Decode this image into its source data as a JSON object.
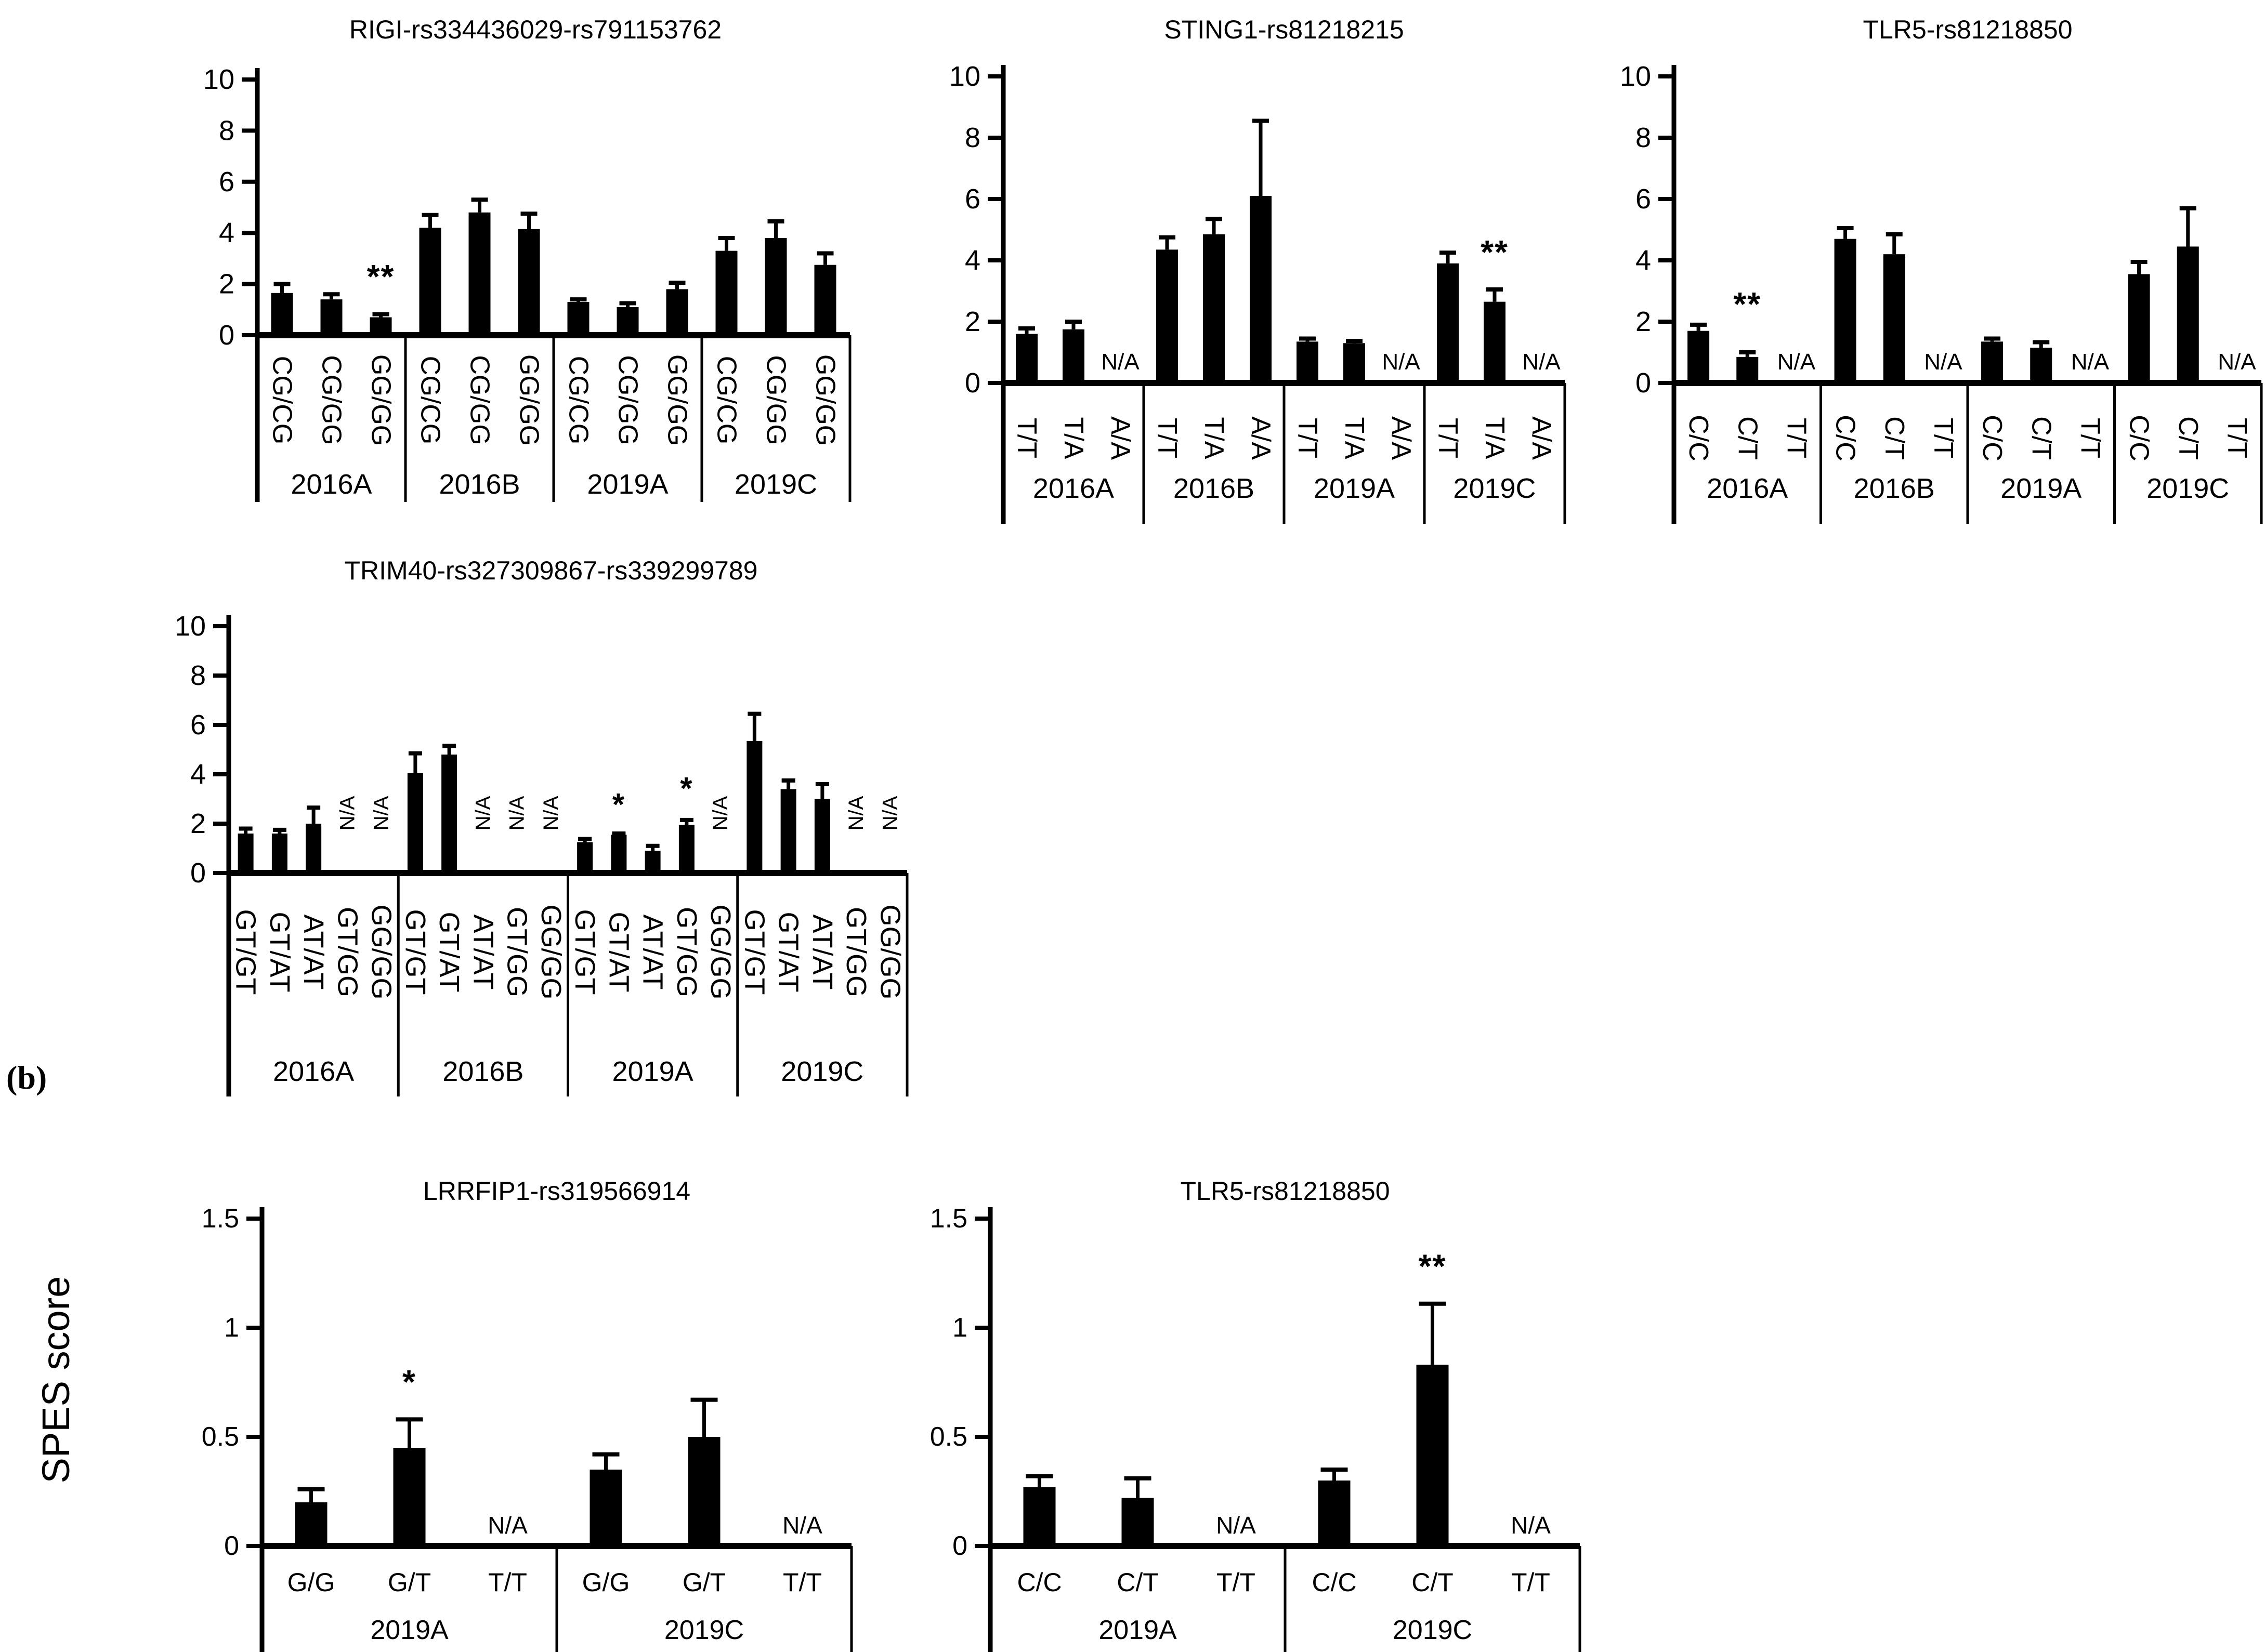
{
  "figure": {
    "panel_label": "(b)",
    "y_axis_label": "SPES score",
    "na_text": "N/A"
  },
  "chart_data": [
    {
      "id": "chart-rigi",
      "type": "bar",
      "title": "RIGI-rs334436029-rs791153762",
      "ylim": [
        0,
        10
      ],
      "yticks": [
        0,
        2,
        4,
        6,
        8,
        10
      ],
      "grid": false,
      "legend": null,
      "genotypes": [
        "CG/CG",
        "CG/GG",
        "GG/GG"
      ],
      "categories": [
        "2016A",
        "2016B",
        "2019A",
        "2019C"
      ],
      "groups": [
        {
          "label": "2016A",
          "bars": [
            {
              "x": "CG/CG",
              "value": 1.65,
              "error": 0.35
            },
            {
              "x": "CG/GG",
              "value": 1.4,
              "error": 0.2
            },
            {
              "x": "GG/GG",
              "value": 0.7,
              "error": 0.12,
              "sig": "**",
              "sig_y": 1.85
            }
          ]
        },
        {
          "label": "2016B",
          "bars": [
            {
              "x": "CG/CG",
              "value": 4.2,
              "error": 0.5
            },
            {
              "x": "CG/GG",
              "value": 4.8,
              "error": 0.5
            },
            {
              "x": "GG/GG",
              "value": 4.15,
              "error": 0.6
            }
          ]
        },
        {
          "label": "2019A",
          "bars": [
            {
              "x": "CG/CG",
              "value": 1.3,
              "error": 0.1
            },
            {
              "x": "CG/GG",
              "value": 1.1,
              "error": 0.15
            },
            {
              "x": "GG/GG",
              "value": 1.8,
              "error": 0.25
            }
          ]
        },
        {
          "label": "2019C",
          "bars": [
            {
              "x": "CG/CG",
              "value": 3.3,
              "error": 0.5
            },
            {
              "x": "CG/GG",
              "value": 3.8,
              "error": 0.65
            },
            {
              "x": "GG/GG",
              "value": 2.75,
              "error": 0.45
            }
          ]
        }
      ]
    },
    {
      "id": "chart-sting1",
      "type": "bar",
      "title": "STING1-rs81218215",
      "ylim": [
        0,
        10
      ],
      "yticks": [
        0,
        2,
        4,
        6,
        8,
        10
      ],
      "grid": false,
      "legend": null,
      "genotypes": [
        "T/T",
        "T/A",
        "A/A"
      ],
      "categories": [
        "2016A",
        "2016B",
        "2019A",
        "2019C"
      ],
      "groups": [
        {
          "label": "2016A",
          "bars": [
            {
              "x": "T/T",
              "value": 1.6,
              "error": 0.18
            },
            {
              "x": "T/A",
              "value": 1.75,
              "error": 0.25
            },
            {
              "x": "A/A",
              "value": null
            }
          ]
        },
        {
          "label": "2016B",
          "bars": [
            {
              "x": "T/T",
              "value": 4.35,
              "error": 0.4
            },
            {
              "x": "T/A",
              "value": 4.85,
              "error": 0.5
            },
            {
              "x": "A/A",
              "value": 6.1,
              "error": 2.45
            }
          ]
        },
        {
          "label": "2019A",
          "bars": [
            {
              "x": "T/T",
              "value": 1.35,
              "error": 0.1
            },
            {
              "x": "T/A",
              "value": 1.3,
              "error": 0.07
            },
            {
              "x": "A/A",
              "value": null
            }
          ]
        },
        {
          "label": "2019C",
          "bars": [
            {
              "x": "T/T",
              "value": 3.9,
              "error": 0.35
            },
            {
              "x": "T/A",
              "value": 2.65,
              "error": 0.4,
              "sig": "**",
              "sig_y": 3.9
            },
            {
              "x": "A/A",
              "value": null
            }
          ]
        }
      ]
    },
    {
      "id": "chart-tlr5a",
      "type": "bar",
      "title": "TLR5-rs81218850",
      "ylim": [
        0,
        10
      ],
      "yticks": [
        0,
        2,
        4,
        6,
        8,
        10
      ],
      "grid": false,
      "legend": null,
      "genotypes": [
        "C/C",
        "C/T",
        "T/T"
      ],
      "categories": [
        "2016A",
        "2016B",
        "2019A",
        "2019C"
      ],
      "groups": [
        {
          "label": "2016A",
          "bars": [
            {
              "x": "C/C",
              "value": 1.7,
              "error": 0.2
            },
            {
              "x": "C/T",
              "value": 0.85,
              "error": 0.15,
              "sig": "**",
              "sig_y": 2.2
            },
            {
              "x": "T/T",
              "value": null
            }
          ]
        },
        {
          "label": "2016B",
          "bars": [
            {
              "x": "C/C",
              "value": 4.7,
              "error": 0.35
            },
            {
              "x": "C/T",
              "value": 4.2,
              "error": 0.65
            },
            {
              "x": "T/T",
              "value": null
            }
          ]
        },
        {
          "label": "2019A",
          "bars": [
            {
              "x": "C/C",
              "value": 1.35,
              "error": 0.1
            },
            {
              "x": "C/T",
              "value": 1.15,
              "error": 0.18
            },
            {
              "x": "T/T",
              "value": null
            }
          ]
        },
        {
          "label": "2019C",
          "bars": [
            {
              "x": "C/C",
              "value": 3.55,
              "error": 0.4
            },
            {
              "x": "C/T",
              "value": 4.45,
              "error": 1.25
            },
            {
              "x": "T/T",
              "value": null
            }
          ]
        }
      ]
    },
    {
      "id": "chart-trim40",
      "type": "bar",
      "title": "TRIM40-rs327309867-rs339299789",
      "ylim": [
        0,
        10
      ],
      "yticks": [
        0,
        2,
        4,
        6,
        8,
        10
      ],
      "grid": false,
      "legend": null,
      "genotypes": [
        "GT/GT",
        "GT/AT",
        "AT/AT",
        "GT/GG",
        "GG/GG"
      ],
      "categories": [
        "2016A",
        "2016B",
        "2019A",
        "2019C"
      ],
      "groups": [
        {
          "label": "2016A",
          "bars": [
            {
              "x": "GT/GT",
              "value": 1.6,
              "error": 0.2
            },
            {
              "x": "GT/AT",
              "value": 1.6,
              "error": 0.15
            },
            {
              "x": "AT/AT",
              "value": 2.0,
              "error": 0.65
            },
            {
              "x": "GT/GG",
              "value": null
            },
            {
              "x": "GG/GG",
              "value": null
            }
          ]
        },
        {
          "label": "2016B",
          "bars": [
            {
              "x": "GT/GT",
              "value": 4.05,
              "error": 0.8
            },
            {
              "x": "GT/AT",
              "value": 4.8,
              "error": 0.35
            },
            {
              "x": "AT/AT",
              "value": null
            },
            {
              "x": "GT/GG",
              "value": null
            },
            {
              "x": "GG/GG",
              "value": null
            }
          ]
        },
        {
          "label": "2019A",
          "bars": [
            {
              "x": "GT/GT",
              "value": 1.25,
              "error": 0.13
            },
            {
              "x": "GT/AT",
              "value": 1.55,
              "error": 0.05,
              "sig": "*",
              "sig_y": 2.35
            },
            {
              "x": "AT/AT",
              "value": 0.9,
              "error": 0.2
            },
            {
              "x": "GT/GG",
              "value": 1.95,
              "error": 0.2,
              "sig": "*",
              "sig_y": 3.0
            },
            {
              "x": "GG/GG",
              "value": null
            }
          ]
        },
        {
          "label": "2019C",
          "bars": [
            {
              "x": "GT/GT",
              "value": 5.35,
              "error": 1.1
            },
            {
              "x": "GT/AT",
              "value": 3.4,
              "error": 0.35
            },
            {
              "x": "AT/AT",
              "value": 3.0,
              "error": 0.6
            },
            {
              "x": "GT/GG",
              "value": null
            },
            {
              "x": "GG/GG",
              "value": null
            }
          ]
        }
      ]
    },
    {
      "id": "chart-lrrfip1",
      "type": "bar",
      "title": "LRRFIP1-rs319566914",
      "ylim": [
        0,
        1.5
      ],
      "yticks": [
        0,
        0.5,
        1,
        1.5
      ],
      "grid": false,
      "legend": null,
      "genotypes": [
        "G/G",
        "G/T",
        "T/T"
      ],
      "categories": [
        "2019A",
        "2019C"
      ],
      "groups": [
        {
          "label": "2019A",
          "bars": [
            {
              "x": "G/G",
              "value": 0.2,
              "error": 0.06
            },
            {
              "x": "G/T",
              "value": 0.45,
              "error": 0.13,
              "sig": "*",
              "sig_y": 0.7
            },
            {
              "x": "T/T",
              "value": null
            }
          ]
        },
        {
          "label": "2019C",
          "bars": [
            {
              "x": "G/G",
              "value": 0.35,
              "error": 0.07
            },
            {
              "x": "G/T",
              "value": 0.5,
              "error": 0.17
            },
            {
              "x": "T/T",
              "value": null
            }
          ]
        }
      ]
    },
    {
      "id": "chart-tlr5b",
      "type": "bar",
      "title": "TLR5-rs81218850",
      "ylim": [
        0,
        1.5
      ],
      "yticks": [
        0,
        0.5,
        1,
        1.5
      ],
      "grid": false,
      "legend": null,
      "genotypes": [
        "C/C",
        "C/T",
        "T/T"
      ],
      "categories": [
        "2019A",
        "2019C"
      ],
      "groups": [
        {
          "label": "2019A",
          "bars": [
            {
              "x": "C/C",
              "value": 0.27,
              "error": 0.05
            },
            {
              "x": "C/T",
              "value": 0.22,
              "error": 0.09
            },
            {
              "x": "T/T",
              "value": null
            }
          ]
        },
        {
          "label": "2019C",
          "bars": [
            {
              "x": "C/C",
              "value": 0.3,
              "error": 0.05
            },
            {
              "x": "C/T",
              "value": 0.83,
              "error": 0.28,
              "sig": "**",
              "sig_y": 1.23
            },
            {
              "x": "T/T",
              "value": null
            }
          ]
        }
      ]
    }
  ]
}
